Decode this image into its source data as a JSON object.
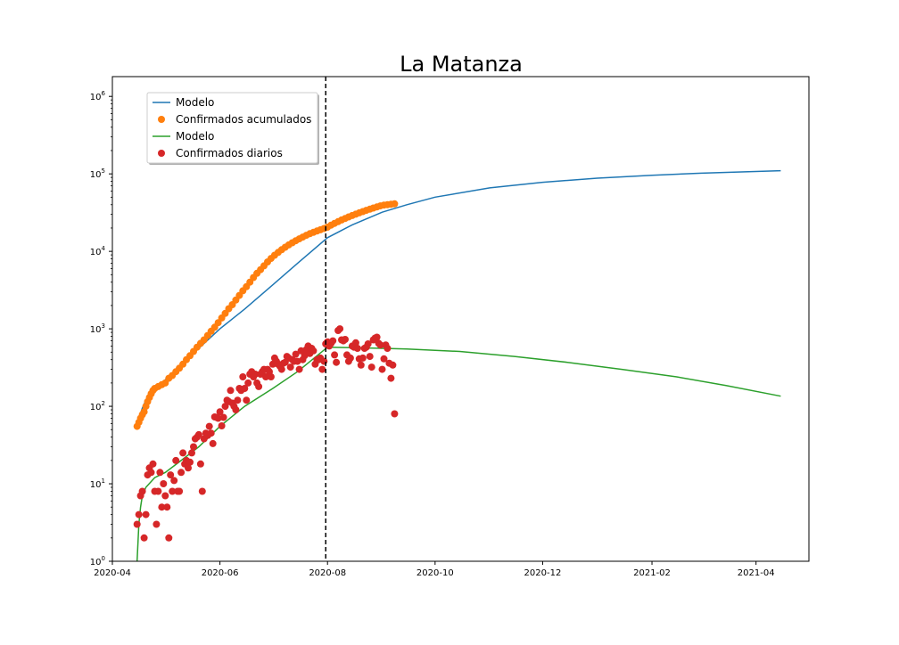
{
  "chart_data": {
    "type": "scatter",
    "title": "La Matanza",
    "xlabel": "",
    "ylabel": "",
    "yscale": "log",
    "ylim": [
      1,
      1800000
    ],
    "xlim": [
      "2020-04-01",
      "2021-05-01"
    ],
    "grid": false,
    "legend_position": "top-left",
    "x_ticks": [
      "2020-04",
      "2020-06",
      "2020-08",
      "2020-10",
      "2020-12",
      "2021-02",
      "2021-04"
    ],
    "y_ticks": [
      {
        "value": 1,
        "base": "10",
        "exp": "0"
      },
      {
        "value": 10,
        "base": "10",
        "exp": "1"
      },
      {
        "value": 100,
        "base": "10",
        "exp": "2"
      },
      {
        "value": 1000,
        "base": "10",
        "exp": "3"
      },
      {
        "value": 10000,
        "base": "10",
        "exp": "4"
      },
      {
        "value": 100000,
        "base": "10",
        "exp": "5"
      },
      {
        "value": 1000000,
        "base": "10",
        "exp": "6"
      }
    ],
    "vline": {
      "x": "2020-07-31",
      "style": "dashed",
      "color": "#000000"
    },
    "series": [
      {
        "name": "Modelo",
        "kind": "line",
        "color": "#1f77b4",
        "x": [
          "2020-04-15",
          "2020-04-16",
          "2020-04-18",
          "2020-04-20",
          "2020-04-25",
          "2020-05-01",
          "2020-05-10",
          "2020-05-20",
          "2020-06-01",
          "2020-06-15",
          "2020-07-01",
          "2020-07-15",
          "2020-08-01",
          "2020-08-15",
          "2020-09-01",
          "2020-09-15",
          "2020-10-01",
          "2020-11-01",
          "2020-12-01",
          "2021-01-01",
          "2021-02-01",
          "2021-03-01",
          "2021-04-15"
        ],
        "y": [
          52,
          70,
          95,
          120,
          165,
          220,
          340,
          560,
          1000,
          1800,
          3700,
          7000,
          15000,
          22000,
          32000,
          40000,
          50000,
          66000,
          78000,
          88000,
          96000,
          102000,
          110000
        ]
      },
      {
        "name": "Confirmados acumulados",
        "kind": "scatter",
        "color": "#ff7f0e",
        "x": [
          "2020-04-15",
          "2020-04-16",
          "2020-04-17",
          "2020-04-18",
          "2020-04-19",
          "2020-04-20",
          "2020-04-21",
          "2020-04-22",
          "2020-04-23",
          "2020-04-24",
          "2020-04-25",
          "2020-04-27",
          "2020-04-29",
          "2020-05-01",
          "2020-05-03",
          "2020-05-05",
          "2020-05-07",
          "2020-05-09",
          "2020-05-11",
          "2020-05-13",
          "2020-05-15",
          "2020-05-17",
          "2020-05-19",
          "2020-05-21",
          "2020-05-23",
          "2020-05-25",
          "2020-05-27",
          "2020-05-29",
          "2020-05-31",
          "2020-06-02",
          "2020-06-04",
          "2020-06-06",
          "2020-06-08",
          "2020-06-10",
          "2020-06-12",
          "2020-06-14",
          "2020-06-16",
          "2020-06-18",
          "2020-06-20",
          "2020-06-22",
          "2020-06-24",
          "2020-06-26",
          "2020-06-28",
          "2020-06-30",
          "2020-07-02",
          "2020-07-04",
          "2020-07-06",
          "2020-07-08",
          "2020-07-10",
          "2020-07-12",
          "2020-07-14",
          "2020-07-16",
          "2020-07-18",
          "2020-07-20",
          "2020-07-22",
          "2020-07-24",
          "2020-07-26",
          "2020-07-28",
          "2020-07-30",
          "2020-08-01",
          "2020-08-03",
          "2020-08-05",
          "2020-08-07",
          "2020-08-09",
          "2020-08-11",
          "2020-08-13",
          "2020-08-15",
          "2020-08-17",
          "2020-08-19",
          "2020-08-21",
          "2020-08-23",
          "2020-08-25",
          "2020-08-27",
          "2020-08-29",
          "2020-08-31",
          "2020-09-02",
          "2020-09-04",
          "2020-09-06",
          "2020-09-08"
        ],
        "y": [
          55,
          62,
          70,
          78,
          85,
          100,
          115,
          130,
          145,
          160,
          170,
          180,
          190,
          200,
          230,
          250,
          280,
          310,
          350,
          400,
          450,
          510,
          580,
          650,
          720,
          820,
          930,
          1050,
          1200,
          1380,
          1580,
          1820,
          2050,
          2350,
          2700,
          3100,
          3500,
          4000,
          4600,
          5200,
          5800,
          6500,
          7300,
          8100,
          8900,
          9700,
          10500,
          11300,
          12100,
          12900,
          13700,
          14500,
          15300,
          16100,
          16900,
          17600,
          18300,
          19000,
          19700,
          20500,
          21800,
          23000,
          24200,
          25400,
          26600,
          27800,
          29000,
          30200,
          31400,
          32600,
          33800,
          35000,
          36200,
          37400,
          38600,
          39500,
          40000,
          40500,
          41000
        ]
      },
      {
        "name": "Modelo",
        "kind": "line",
        "color": "#2ca02c",
        "x": [
          "2020-04-15",
          "2020-04-16",
          "2020-04-17",
          "2020-04-18",
          "2020-04-20",
          "2020-04-25",
          "2020-05-01",
          "2020-05-10",
          "2020-05-20",
          "2020-06-01",
          "2020-06-15",
          "2020-07-01",
          "2020-07-15",
          "2020-08-01",
          "2020-08-15",
          "2020-09-01",
          "2020-09-15",
          "2020-10-15",
          "2020-11-15",
          "2020-12-15",
          "2021-01-15",
          "2021-02-15",
          "2021-03-15",
          "2021-04-15"
        ],
        "y": [
          1,
          3,
          5,
          7,
          9,
          12,
          14,
          20,
          30,
          55,
          100,
          170,
          280,
          580,
          570,
          560,
          550,
          510,
          440,
          370,
          300,
          240,
          185,
          135
        ]
      },
      {
        "name": "Confirmados diarios",
        "kind": "scatter",
        "color": "#d62728",
        "x": [
          "2020-04-15",
          "2020-04-16",
          "2020-04-17",
          "2020-04-18",
          "2020-04-19",
          "2020-04-20",
          "2020-04-21",
          "2020-04-22",
          "2020-04-23",
          "2020-04-24",
          "2020-04-25",
          "2020-04-26",
          "2020-04-27",
          "2020-04-28",
          "2020-04-29",
          "2020-04-30",
          "2020-05-01",
          "2020-05-02",
          "2020-05-03",
          "2020-05-04",
          "2020-05-05",
          "2020-05-06",
          "2020-05-07",
          "2020-05-08",
          "2020-05-09",
          "2020-05-10",
          "2020-05-11",
          "2020-05-12",
          "2020-05-13",
          "2020-05-14",
          "2020-05-15",
          "2020-05-16",
          "2020-05-17",
          "2020-05-18",
          "2020-05-19",
          "2020-05-20",
          "2020-05-21",
          "2020-05-22",
          "2020-05-23",
          "2020-05-24",
          "2020-05-25",
          "2020-05-26",
          "2020-05-27",
          "2020-05-28",
          "2020-05-29",
          "2020-05-30",
          "2020-05-31",
          "2020-06-01",
          "2020-06-02",
          "2020-06-03",
          "2020-06-04",
          "2020-06-05",
          "2020-06-06",
          "2020-06-07",
          "2020-06-08",
          "2020-06-09",
          "2020-06-10",
          "2020-06-11",
          "2020-06-12",
          "2020-06-13",
          "2020-06-14",
          "2020-06-15",
          "2020-06-16",
          "2020-06-17",
          "2020-06-18",
          "2020-06-19",
          "2020-06-20",
          "2020-06-21",
          "2020-06-22",
          "2020-06-23",
          "2020-06-24",
          "2020-06-25",
          "2020-06-26",
          "2020-06-27",
          "2020-06-28",
          "2020-06-29",
          "2020-06-30",
          "2020-07-01",
          "2020-07-02",
          "2020-07-03",
          "2020-07-04",
          "2020-07-05",
          "2020-07-06",
          "2020-07-07",
          "2020-07-08",
          "2020-07-09",
          "2020-07-10",
          "2020-07-11",
          "2020-07-12",
          "2020-07-13",
          "2020-07-14",
          "2020-07-15",
          "2020-07-16",
          "2020-07-17",
          "2020-07-18",
          "2020-07-19",
          "2020-07-20",
          "2020-07-21",
          "2020-07-22",
          "2020-07-23",
          "2020-07-24",
          "2020-07-25",
          "2020-07-26",
          "2020-07-27",
          "2020-07-28",
          "2020-07-29",
          "2020-07-30",
          "2020-07-31",
          "2020-08-01",
          "2020-08-02",
          "2020-08-03",
          "2020-08-04",
          "2020-08-05",
          "2020-08-06",
          "2020-08-07",
          "2020-08-08",
          "2020-08-09",
          "2020-08-10",
          "2020-08-11",
          "2020-08-12",
          "2020-08-13",
          "2020-08-14",
          "2020-08-15",
          "2020-08-16",
          "2020-08-17",
          "2020-08-18",
          "2020-08-19",
          "2020-08-20",
          "2020-08-21",
          "2020-08-22",
          "2020-08-23",
          "2020-08-24",
          "2020-08-25",
          "2020-08-26",
          "2020-08-27",
          "2020-08-28",
          "2020-08-29",
          "2020-08-30",
          "2020-08-31",
          "2020-09-01",
          "2020-09-02",
          "2020-09-03",
          "2020-09-04",
          "2020-09-05",
          "2020-09-06",
          "2020-09-07",
          "2020-09-08"
        ],
        "y": [
          3,
          4,
          7,
          8,
          2,
          4,
          13,
          16,
          14,
          18,
          8,
          3,
          8,
          14,
          5,
          10,
          7,
          5,
          2,
          13,
          8,
          11,
          20,
          8,
          8,
          14,
          25,
          18,
          20,
          16,
          19,
          25,
          30,
          38,
          40,
          43,
          18,
          8,
          38,
          45,
          42,
          55,
          45,
          33,
          73,
          72,
          70,
          85,
          56,
          72,
          100,
          120,
          115,
          160,
          110,
          100,
          90,
          120,
          170,
          160,
          240,
          170,
          120,
          200,
          260,
          280,
          240,
          260,
          200,
          180,
          260,
          280,
          300,
          240,
          300,
          280,
          240,
          350,
          420,
          380,
          350,
          330,
          300,
          360,
          370,
          440,
          420,
          320,
          400,
          380,
          470,
          380,
          300,
          520,
          400,
          450,
          540,
          600,
          480,
          560,
          520,
          350,
          400,
          400,
          420,
          300,
          380,
          640,
          680,
          600,
          650,
          700,
          460,
          370,
          950,
          1000,
          720,
          700,
          730,
          460,
          380,
          420,
          600,
          580,
          660,
          560,
          410,
          340,
          420,
          560,
          580,
          640,
          440,
          320,
          720,
          760,
          780,
          650,
          620,
          300,
          410,
          620,
          560,
          360,
          230,
          340,
          80
        ]
      }
    ]
  }
}
